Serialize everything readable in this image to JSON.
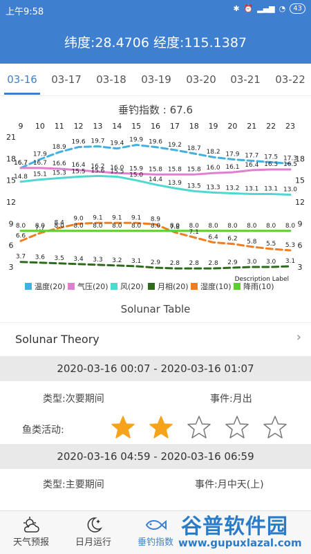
{
  "status_bar": {
    "time": "上午9:58",
    "battery": "43"
  },
  "header": {
    "title": "纬度:28.4706 经度:115.1387"
  },
  "date_tabs": [
    "03-16",
    "03-17",
    "03-18",
    "03-19",
    "03-20",
    "03-21",
    "03-22"
  ],
  "active_tab": 0,
  "chart_data": {
    "type": "line",
    "title": "垂钓指数 : 67.6",
    "x": [
      "9",
      "10",
      "11",
      "12",
      "13",
      "14",
      "15",
      "16",
      "17",
      "18",
      "19",
      "20",
      "21",
      "22",
      "23"
    ],
    "left_axis_ticks": [
      "21",
      "18",
      "15",
      "12",
      "9",
      "6",
      "3"
    ],
    "right_axis_ticks": [
      "18",
      "15",
      "12",
      "9",
      "6",
      "3"
    ],
    "description_label": "Description Label",
    "series": [
      {
        "name": "温度(20)",
        "color": "#42b0e0",
        "dash": true,
        "values": [
          16.7,
          17.9,
          18.9,
          19.6,
          19.7,
          19.4,
          19.9,
          19.6,
          19.2,
          18.7,
          18.2,
          17.9,
          17.7,
          17.5,
          17.3
        ]
      },
      {
        "name": "气压(20)",
        "color": "#e07fd0",
        "dash": false,
        "values": [
          16.7,
          16.7,
          16.6,
          16.4,
          16.2,
          16.0,
          15.9,
          15.8,
          15.8,
          15.8,
          16.0,
          16.1,
          16.4,
          16.5,
          16.5
        ]
      },
      {
        "name": "风(20)",
        "color": "#4fd8d0",
        "dash": false,
        "values": [
          14.8,
          15.1,
          15.3,
          15.5,
          15.6,
          15.5,
          15.0,
          14.4,
          13.9,
          13.5,
          13.3,
          13.2,
          13.1,
          13.1,
          13.0
        ]
      },
      {
        "name": "月相(20)",
        "color": "#2d6a1a",
        "dash": true,
        "values": [
          3.7,
          3.6,
          3.5,
          3.4,
          3.3,
          3.2,
          3.1,
          2.9,
          2.8,
          2.8,
          2.8,
          2.9,
          3.0,
          3.0,
          3.1
        ]
      },
      {
        "name": "湿度(10)",
        "color": "#f07e20",
        "dash": true,
        "values": [
          6.6,
          7.7,
          8.4,
          9.0,
          9.1,
          9.1,
          9.1,
          8.9,
          7.8,
          7.1,
          6.4,
          6.2,
          5.8,
          5.5,
          5.3
        ]
      },
      {
        "name": "降雨(10)",
        "color": "#5ad030",
        "dash": false,
        "values": [
          8.0,
          8.0,
          8.0,
          8.0,
          8.0,
          8.0,
          8.0,
          8.0,
          8.0,
          8.0,
          8.0,
          8.0,
          8.0,
          8.0,
          8.0
        ]
      }
    ]
  },
  "solunar_title": "Solunar Table",
  "theory_label": "Solunar Theory",
  "periods": [
    {
      "range": "2020-03-16 00:07 - 2020-03-16 01:07",
      "type": "类型:次要期间",
      "event": "事件:月出",
      "activity_label": "鱼类活动:",
      "stars": 2,
      "max_stars": 5
    },
    {
      "range": "2020-03-16 04:59 - 2020-03-16 06:59",
      "type": "类型:主要期间",
      "event": "事件:月中天(上)"
    }
  ],
  "bottom_nav": [
    {
      "label": "天气预报",
      "icon": "weather-icon"
    },
    {
      "label": "日月运行",
      "icon": "moon-icon"
    },
    {
      "label": "垂钓指数",
      "icon": "fish-icon"
    }
  ],
  "watermark": {
    "text": "谷普软件园",
    "url": "www.gupuxlazal.com"
  }
}
